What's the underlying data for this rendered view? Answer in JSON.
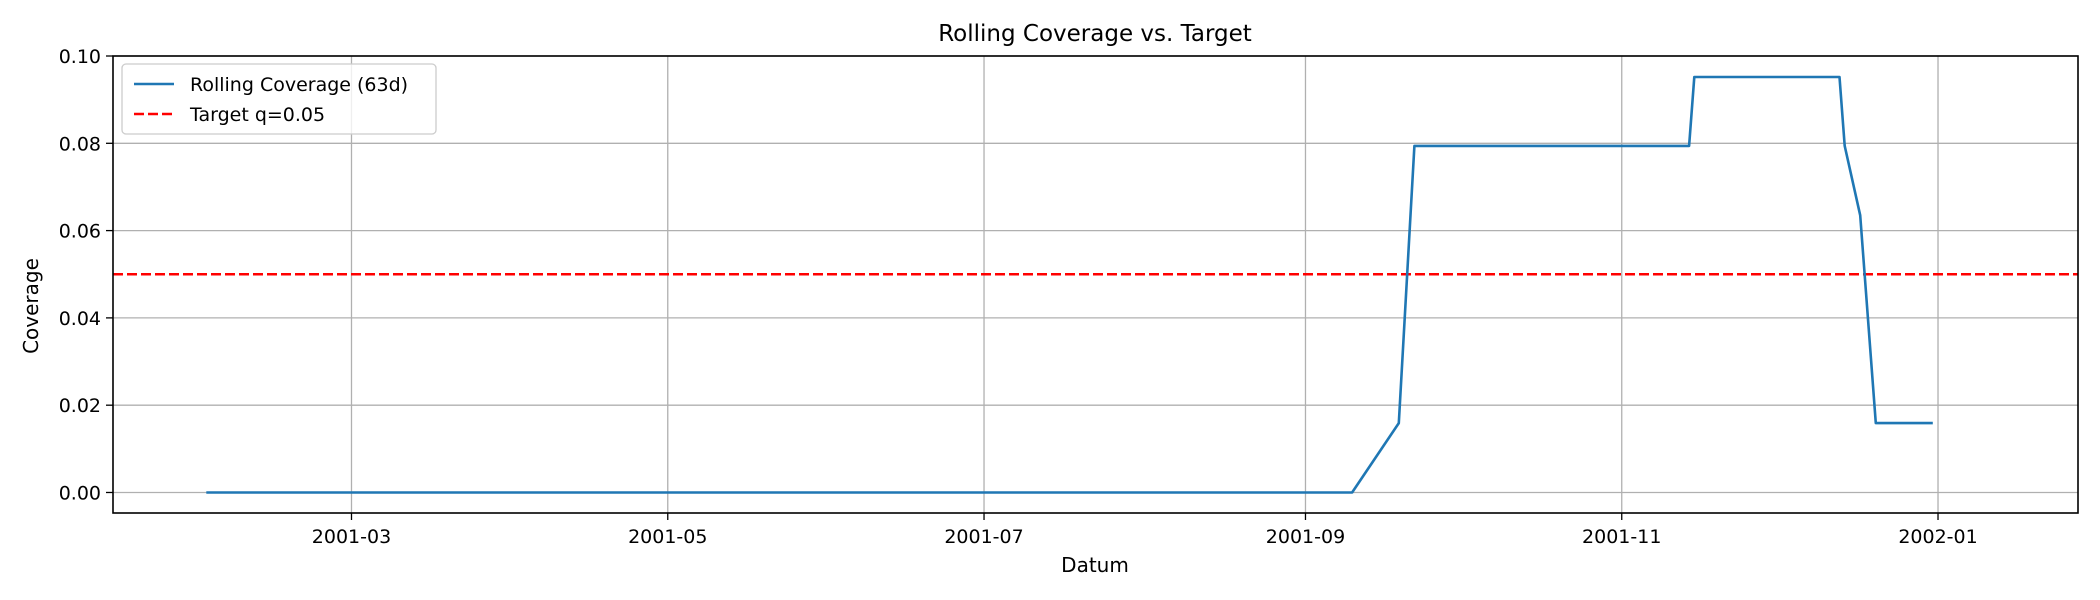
{
  "chart_data": {
    "type": "line",
    "title": "Rolling Coverage vs. Target",
    "xlabel": "Datum",
    "ylabel": "Coverage",
    "x_is_date": true,
    "xlim": [
      "2001-01-14",
      "2002-01-28"
    ],
    "ylim": [
      -0.0047,
      0.1
    ],
    "x_ticks": [
      "2001-03-01",
      "2001-05-01",
      "2001-07-01",
      "2001-09-01",
      "2001-11-01",
      "2002-01-01"
    ],
    "x_tick_labels": [
      "2001-03",
      "2001-05",
      "2001-07",
      "2001-09",
      "2001-11",
      "2002-01"
    ],
    "y_ticks": [
      0.0,
      0.02,
      0.04,
      0.06,
      0.08,
      0.1
    ],
    "y_tick_labels": [
      "0.00",
      "0.02",
      "0.04",
      "0.06",
      "0.08",
      "0.10"
    ],
    "grid": true,
    "legend_position": "top-left",
    "series": [
      {
        "name": "Rolling Coverage (63d)",
        "color": "#1f77b4",
        "style": "solid",
        "points": [
          {
            "x": "2001-02-01",
            "y": 0.0
          },
          {
            "x": "2001-09-10",
            "y": 0.0
          },
          {
            "x": "2001-09-19",
            "y": 0.0159
          },
          {
            "x": "2001-09-22",
            "y": 0.0794
          },
          {
            "x": "2001-11-14",
            "y": 0.0794
          },
          {
            "x": "2001-11-15",
            "y": 0.0952
          },
          {
            "x": "2001-12-13",
            "y": 0.0952
          },
          {
            "x": "2001-12-14",
            "y": 0.0794
          },
          {
            "x": "2001-12-17",
            "y": 0.0635
          },
          {
            "x": "2001-12-20",
            "y": 0.0159
          },
          {
            "x": "2001-12-31",
            "y": 0.0159
          }
        ]
      },
      {
        "name": "Target q=0.05",
        "color": "#ff0000",
        "style": "dashed",
        "hline": 0.05
      }
    ]
  }
}
